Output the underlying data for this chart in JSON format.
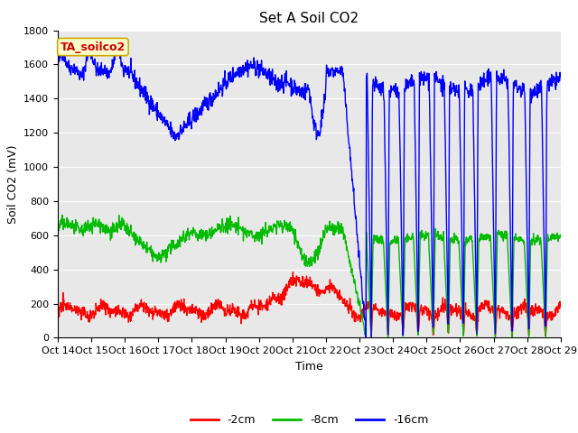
{
  "title": "Set A Soil CO2",
  "ylabel": "Soil CO2 (mV)",
  "xlabel": "Time",
  "annotation": "TA_soilco2",
  "x_tick_labels": [
    "Oct 14",
    "Oct 15",
    "Oct 16",
    "Oct 17",
    "Oct 18",
    "Oct 19",
    "Oct 20",
    "Oct 21",
    "Oct 22",
    "Oct 23",
    "Oct 24",
    "Oct 25",
    "Oct 26",
    "Oct 27",
    "Oct 28",
    "Oct 29"
  ],
  "ylim": [
    0,
    1800
  ],
  "yticks": [
    0,
    200,
    400,
    600,
    800,
    1000,
    1200,
    1400,
    1600,
    1800
  ],
  "fig_bg_color": "#ffffff",
  "plot_bg_color": "#e8e8e8",
  "grid_color": "#ffffff",
  "line_colors": [
    "#ff0000",
    "#00bb00",
    "#0000ff"
  ],
  "line_labels": [
    "-2cm",
    "-8cm",
    "-16cm"
  ],
  "line_width": 1.0,
  "title_fontsize": 11,
  "axis_label_fontsize": 9,
  "tick_fontsize": 8,
  "annotation_color": "#cc0000",
  "annotation_bg": "#ffffcc",
  "annotation_border": "#ccaa00",
  "legend_fontsize": 9
}
